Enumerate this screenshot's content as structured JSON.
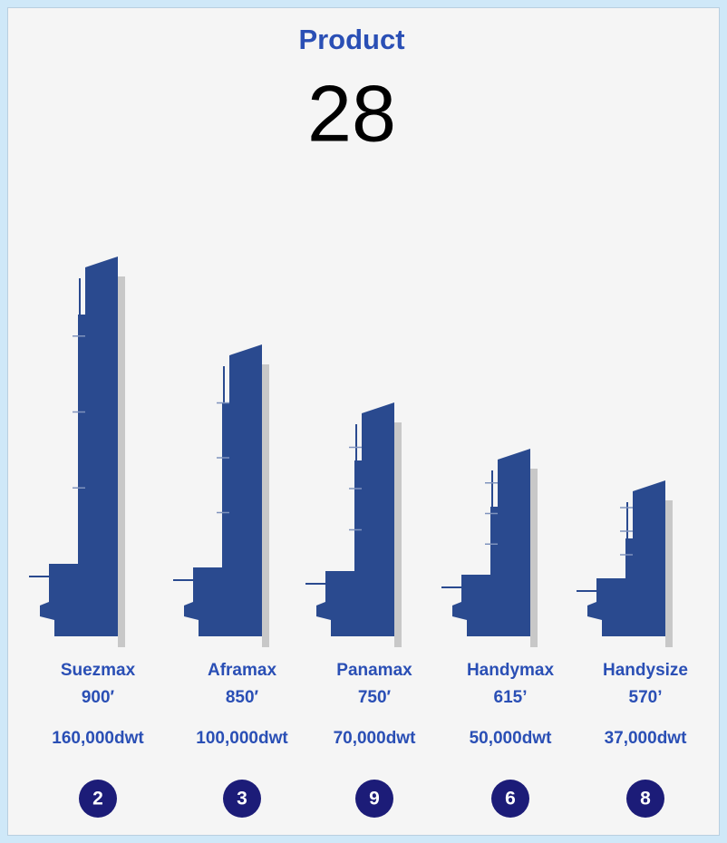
{
  "header": {
    "title": "Product",
    "total": "28"
  },
  "ships": [
    {
      "name": "Suezmax",
      "length": "900′",
      "dwt": "160,000dwt",
      "count": "2"
    },
    {
      "name": "Aframax",
      "length": "850′",
      "dwt": "100,000dwt",
      "count": "3"
    },
    {
      "name": "Panamax",
      "length": "750′",
      "dwt": "70,000dwt",
      "count": "9"
    },
    {
      "name": "Handymax",
      "length": "615’",
      "dwt": "50,000dwt",
      "count": "6"
    },
    {
      "name": "Handysize",
      "length": "570’",
      "dwt": "37,000dwt",
      "count": "8"
    }
  ]
}
